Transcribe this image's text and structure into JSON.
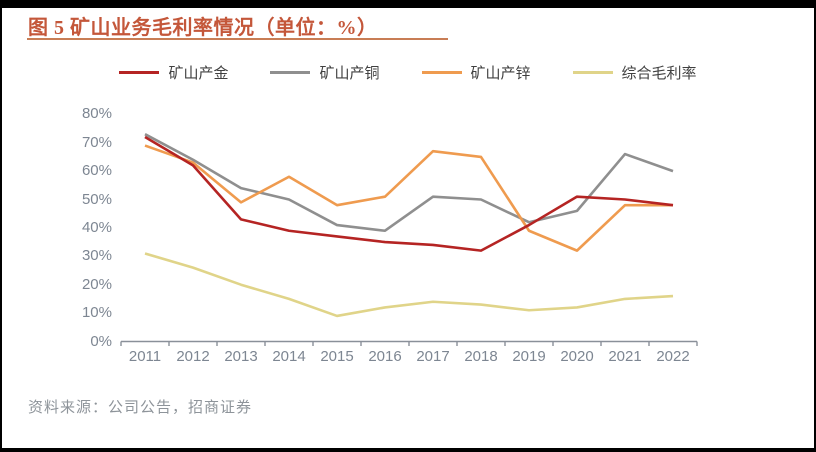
{
  "frame": {
    "background": "#ffffff",
    "border_color": "#000000",
    "title": "图 5 矿山业务毛利率情况（单位：%）",
    "title_color": "#c4573a",
    "title_underline_color": "#c87d55",
    "source_note": "资料来源：公司公告，招商证券",
    "source_color": "#8e949a"
  },
  "chart_data": {
    "type": "line",
    "title": "图 5 矿山业务毛利率情况（单位：%）",
    "unit": "%",
    "categories": [
      "2011",
      "2012",
      "2013",
      "2014",
      "2015",
      "2016",
      "2017",
      "2018",
      "2019",
      "2020",
      "2021",
      "2022"
    ],
    "series": [
      {
        "name": "矿山产金",
        "color": "#b52423",
        "values": [
          72,
          62,
          43,
          39,
          37,
          35,
          34,
          32,
          41,
          51,
          50,
          48
        ]
      },
      {
        "name": "矿山产铜",
        "color": "#8f8f8f",
        "values": [
          73,
          64,
          54,
          50,
          41,
          39,
          51,
          50,
          42,
          46,
          66,
          60
        ]
      },
      {
        "name": "矿山产锌",
        "color": "#ef9b4f",
        "values": [
          69,
          63,
          49,
          58,
          48,
          51,
          67,
          65,
          39,
          32,
          48,
          48
        ]
      },
      {
        "name": "综合毛利率",
        "color": "#e0d489",
        "values": [
          31,
          26,
          20,
          15,
          9,
          12,
          14,
          13,
          11,
          12,
          15,
          16
        ]
      }
    ],
    "ylim": [
      0,
      80
    ],
    "ytick_step": 10,
    "yticks": [
      "0%",
      "10%",
      "20%",
      "30%",
      "40%",
      "50%",
      "60%",
      "70%",
      "80%"
    ],
    "ytick_suffix": "%",
    "grid": false,
    "legend_position": "top",
    "axis_color": "#8a9099",
    "tick_label_color": "#7d8692",
    "draw_order": [
      1,
      2,
      3,
      0
    ]
  }
}
